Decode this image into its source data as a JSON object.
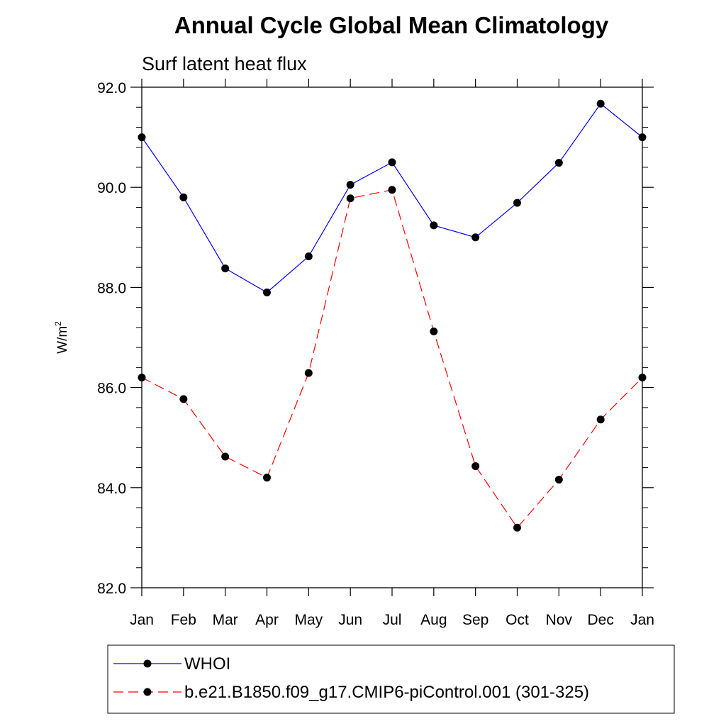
{
  "chart_data": {
    "type": "line",
    "title": "Annual Cycle Global Mean Climatology",
    "subtitle": "Surf latent heat flux",
    "xlabel": "",
    "ylabel_base": "W/m",
    "ylabel_sup": "2",
    "categories": [
      "Jan",
      "Feb",
      "Mar",
      "Apr",
      "May",
      "Jun",
      "Jul",
      "Aug",
      "Sep",
      "Oct",
      "Nov",
      "Dec",
      "Jan"
    ],
    "ylim": [
      82.0,
      92.0
    ],
    "yticks": [
      "82.0",
      "84.0",
      "86.0",
      "88.0",
      "90.0",
      "92.0"
    ],
    "grid": false,
    "legend_position": "bottom",
    "series": [
      {
        "name": "WHOI",
        "color": "#0000ff",
        "dash": "solid",
        "marker": "filled-circle",
        "values": [
          91.0,
          89.8,
          88.38,
          87.9,
          88.62,
          90.05,
          90.5,
          89.24,
          89.0,
          89.69,
          90.49,
          91.67,
          91.0
        ]
      },
      {
        "name": "b.e21.B1850.f09_g17.CMIP6-piControl.001 (301-325)",
        "color": "#ff0000",
        "dash": "dashed",
        "marker": "filled-circle",
        "values": [
          86.2,
          85.77,
          84.62,
          84.2,
          86.29,
          89.78,
          89.95,
          87.12,
          84.43,
          83.2,
          84.16,
          85.36,
          86.2
        ]
      }
    ]
  }
}
